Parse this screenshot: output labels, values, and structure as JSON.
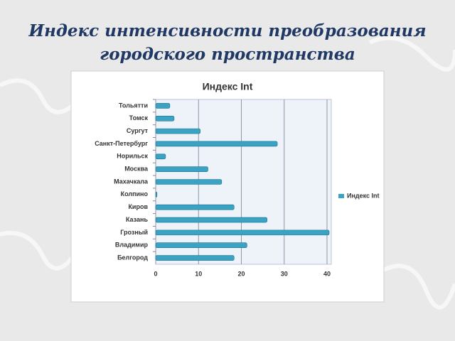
{
  "slide_title": [
    "Индекс интенсивности преобразования",
    "городского пространства"
  ],
  "chart_data": {
    "type": "hbar",
    "title": "Индекс Int",
    "categories": [
      "Тольятти",
      "Томск",
      "Сургут",
      "Санкт-Петербург",
      "Норильск",
      "Москва",
      "Махачкала",
      "Колпино",
      "Киров",
      "Казань",
      "Грозный",
      "Владимир",
      "Белгород"
    ],
    "series": [
      {
        "name": "Индекс Int",
        "color": "#3aa3c4",
        "values": [
          3.3,
          4.3,
          10.4,
          28.4,
          2.3,
          12.2,
          15.4,
          0.3,
          18.3,
          26,
          40.5,
          21.3,
          18.3
        ]
      }
    ],
    "xlim": [
      0,
      41
    ],
    "xticks": [
      0,
      10,
      20,
      30,
      40
    ],
    "grid": true,
    "legend": "right"
  }
}
